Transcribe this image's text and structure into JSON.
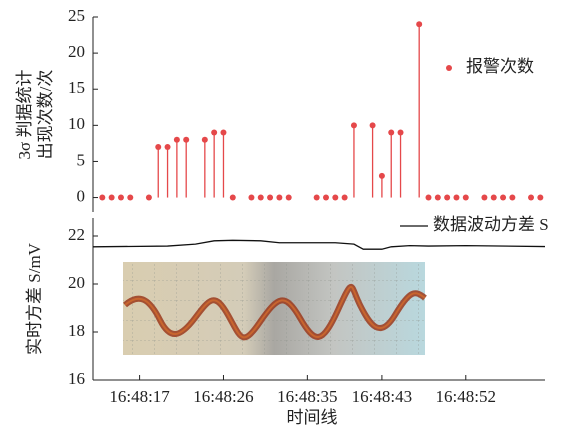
{
  "chart_data": [
    {
      "type": "stem",
      "ylabel": [
        "3σ 判据统计",
        "出现次数/次"
      ],
      "x": [
        13,
        14,
        15,
        16,
        18,
        19,
        20,
        21,
        22,
        24,
        25,
        26,
        27,
        29,
        30,
        31,
        32,
        33,
        36,
        37,
        38,
        39,
        40,
        42,
        43,
        44,
        45,
        47,
        48,
        49,
        50,
        51,
        52,
        54,
        55,
        56,
        57,
        59,
        60
      ],
      "series": [
        {
          "name": "报警次数",
          "color": "#e5484a",
          "values": [
            0,
            0,
            0,
            0,
            0,
            7,
            7,
            8,
            8,
            8,
            9,
            9,
            0,
            0,
            0,
            0,
            0,
            0,
            0,
            0,
            0,
            0,
            10,
            10,
            3,
            9,
            9,
            24,
            0,
            0,
            0,
            0,
            0,
            0,
            0,
            0,
            0,
            0,
            0
          ]
        }
      ],
      "xlim": [
        12,
        60.5
      ],
      "ylim": [
        -2,
        25
      ],
      "yticks": [
        0,
        5,
        10,
        15,
        20,
        25
      ],
      "legend": "upper right"
    },
    {
      "type": "line",
      "ylabel": [
        "实时方差 S/mV"
      ],
      "xlabel": "时间线",
      "x": [
        12,
        20,
        23,
        25,
        27,
        30,
        32,
        38,
        40,
        41,
        43,
        44,
        46,
        48,
        52,
        60.5
      ],
      "series": [
        {
          "name": "数据波动方差 S",
          "color": "#111111",
          "values": [
            21.55,
            21.58,
            21.66,
            21.8,
            21.82,
            21.8,
            21.72,
            21.72,
            21.66,
            21.45,
            21.45,
            21.55,
            21.6,
            21.58,
            21.6,
            21.56
          ]
        }
      ],
      "xlim": [
        12,
        60.5
      ],
      "ylim": [
        16,
        22.75
      ],
      "yticks": [
        16,
        18,
        20,
        22
      ],
      "xticks": [
        {
          "value": 17,
          "label": "16:48:17"
        },
        {
          "value": 26,
          "label": "16:48:26"
        },
        {
          "value": 35,
          "label": "16:48:35"
        },
        {
          "value": 43,
          "label": "16:48:43"
        },
        {
          "value": 52,
          "label": "16:48:52"
        }
      ],
      "legend": "upper right"
    }
  ]
}
